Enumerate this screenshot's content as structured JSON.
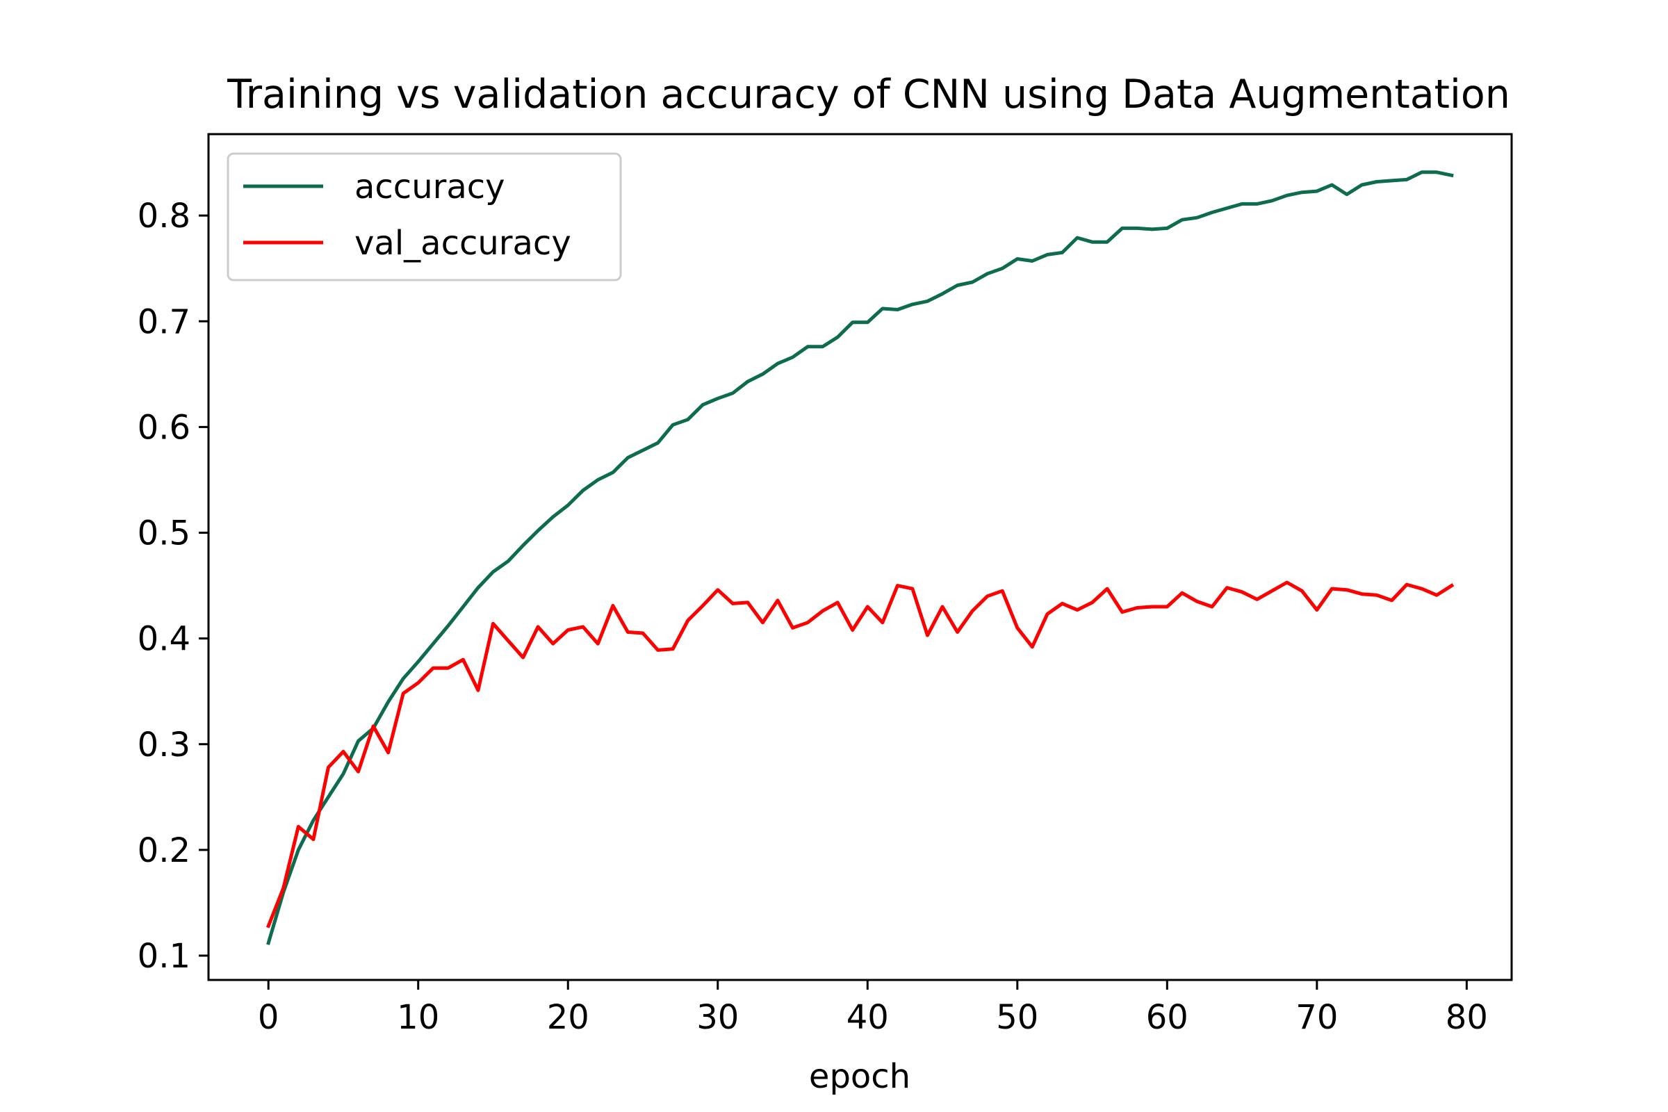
{
  "chart_data": {
    "type": "line",
    "title": "Training vs validation accuracy of CNN using Data Augmentation",
    "xlabel": "epoch",
    "ylabel": "",
    "xlim": [
      -4,
      83
    ],
    "ylim": [
      0.077,
      0.877
    ],
    "xticks": [
      0,
      10,
      20,
      30,
      40,
      50,
      60,
      70,
      80
    ],
    "yticks": [
      0.1,
      0.2,
      0.3,
      0.4,
      0.5,
      0.6,
      0.7,
      0.8
    ],
    "grid": false,
    "legend_position": "top-left",
    "x": [
      0,
      1,
      2,
      3,
      4,
      5,
      6,
      7,
      8,
      9,
      10,
      11,
      12,
      13,
      14,
      15,
      16,
      17,
      18,
      19,
      20,
      21,
      22,
      23,
      24,
      25,
      26,
      27,
      28,
      29,
      30,
      31,
      32,
      33,
      34,
      35,
      36,
      37,
      38,
      39,
      40,
      41,
      42,
      43,
      44,
      45,
      46,
      47,
      48,
      49,
      50,
      51,
      52,
      53,
      54,
      55,
      56,
      57,
      58,
      59,
      60,
      61,
      62,
      63,
      64,
      65,
      66,
      67,
      68,
      69,
      70,
      71,
      72,
      73,
      74,
      75,
      76,
      77,
      78,
      79
    ],
    "series": [
      {
        "name": "accuracy",
        "color": "#0d6b4f",
        "values": [
          0.112,
          0.16,
          0.2,
          0.228,
          0.25,
          0.272,
          0.303,
          0.315,
          0.34,
          0.362,
          0.378,
          0.395,
          0.412,
          0.43,
          0.448,
          0.463,
          0.473,
          0.488,
          0.502,
          0.515,
          0.526,
          0.54,
          0.55,
          0.557,
          0.571,
          0.578,
          0.585,
          0.602,
          0.607,
          0.621,
          0.627,
          0.632,
          0.643,
          0.65,
          0.66,
          0.666,
          0.676,
          0.676,
          0.685,
          0.699,
          0.699,
          0.712,
          0.711,
          0.716,
          0.719,
          0.726,
          0.734,
          0.737,
          0.745,
          0.75,
          0.759,
          0.757,
          0.763,
          0.765,
          0.779,
          0.775,
          0.775,
          0.788,
          0.788,
          0.787,
          0.788,
          0.796,
          0.798,
          0.803,
          0.807,
          0.811,
          0.811,
          0.814,
          0.819,
          0.822,
          0.823,
          0.829,
          0.82,
          0.829,
          0.832,
          0.833,
          0.834,
          0.841,
          0.841,
          0.838
        ]
      },
      {
        "name": "val_accuracy",
        "color": "#ff0000",
        "values": [
          0.128,
          0.164,
          0.222,
          0.21,
          0.278,
          0.293,
          0.274,
          0.317,
          0.292,
          0.348,
          0.358,
          0.372,
          0.372,
          0.38,
          0.351,
          0.414,
          0.398,
          0.382,
          0.411,
          0.395,
          0.408,
          0.411,
          0.395,
          0.431,
          0.406,
          0.405,
          0.389,
          0.39,
          0.417,
          0.431,
          0.446,
          0.433,
          0.434,
          0.415,
          0.436,
          0.41,
          0.415,
          0.426,
          0.434,
          0.408,
          0.43,
          0.415,
          0.45,
          0.447,
          0.403,
          0.43,
          0.406,
          0.426,
          0.44,
          0.445,
          0.41,
          0.392,
          0.423,
          0.433,
          0.427,
          0.434,
          0.447,
          0.425,
          0.429,
          0.43,
          0.43,
          0.443,
          0.435,
          0.43,
          0.448,
          0.444,
          0.437,
          0.445,
          0.453,
          0.445,
          0.427,
          0.447,
          0.446,
          0.442,
          0.441,
          0.436,
          0.451,
          0.447,
          0.441,
          0.45
        ]
      }
    ]
  }
}
